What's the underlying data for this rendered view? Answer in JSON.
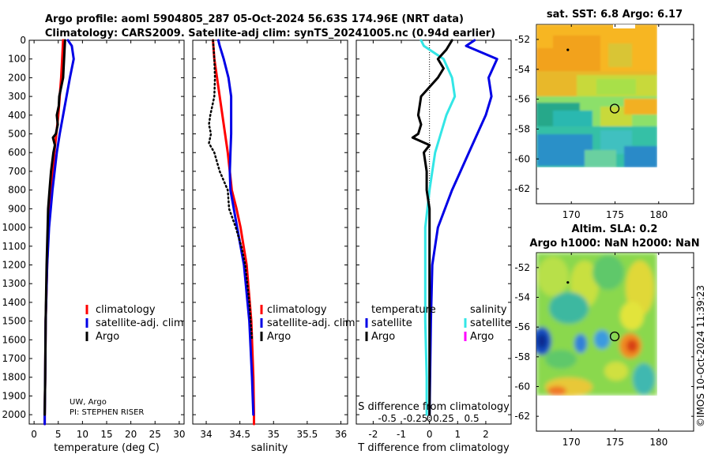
{
  "figure": {
    "title_line1": "Argo profile: aoml 5904805_287 05-Oct-2024 56.63S 174.96E (NRT data)",
    "title_line2": "Climatology: CARS2009. Satellite-adj clim: synTS_20241005.nc (0.94d earlier)",
    "credit": "©IMOS 10-Oct-2024 11:39:23",
    "source_line1": "UW, Argo",
    "source_line2": "PI: STEPHEN RISER"
  },
  "colors": {
    "climatology": "#ff0000",
    "satellite": "#0000e6",
    "argo": "#000000",
    "sal_satellite": "#33e6e6",
    "sal_argo": "#ff00ff",
    "map_marker": "#000000"
  },
  "chart_data": [
    {
      "id": "temperature",
      "type": "line",
      "xlabel": "temperature (deg C)",
      "ylabel": "",
      "xlim": [
        -1,
        31
      ],
      "ylim": [
        2050,
        0
      ],
      "xticks": [
        0,
        5,
        10,
        15,
        20,
        25,
        30
      ],
      "xtick_labels": [
        "0",
        "5",
        "10",
        "15",
        "20",
        "25",
        "30"
      ],
      "yticks": [
        0,
        100,
        200,
        300,
        400,
        500,
        600,
        700,
        800,
        900,
        1000,
        1100,
        1200,
        1300,
        1400,
        1500,
        1600,
        1700,
        1800,
        1900,
        2000
      ],
      "ytick_labels": [
        "0",
        "100",
        "200",
        "300",
        "400",
        "500",
        "600",
        "700",
        "800",
        "900",
        "1000",
        "1100",
        "1200",
        "1300",
        "1400",
        "1500",
        "1600",
        "1700",
        "1800",
        "1900",
        "2000"
      ],
      "legend": [
        "climatology",
        "satellite-adj. clim",
        "Argo"
      ],
      "series": [
        {
          "name": "climatology",
          "style": "solid",
          "depth": [
            0,
            100,
            200,
            300,
            400,
            500,
            600,
            800,
            1000,
            1200,
            1500,
            1800,
            2000,
            2050
          ],
          "values": [
            6.0,
            5.8,
            5.6,
            5.3,
            5.0,
            4.6,
            4.2,
            3.6,
            3.0,
            2.7,
            2.4,
            2.3,
            2.2,
            2.2
          ]
        },
        {
          "name": "satellite-adj. clim",
          "style": "solid",
          "depth": [
            0,
            30,
            100,
            200,
            300,
            400,
            500,
            600,
            800,
            1000,
            1200,
            1500,
            1800,
            2000,
            2050
          ],
          "values": [
            7.0,
            7.8,
            8.2,
            7.4,
            6.7,
            6.0,
            5.3,
            4.7,
            3.8,
            3.1,
            2.7,
            2.4,
            2.3,
            2.2,
            2.2
          ]
        },
        {
          "name": "Argo",
          "style": "solid",
          "depth": [
            0,
            100,
            200,
            300,
            350,
            400,
            450,
            500,
            520,
            560,
            600,
            700,
            800,
            900,
            1000,
            1200,
            1500,
            1800,
            2000
          ],
          "values": [
            6.4,
            6.2,
            6.0,
            5.2,
            5.1,
            4.7,
            4.9,
            4.5,
            3.9,
            4.3,
            4.0,
            3.5,
            3.2,
            2.9,
            2.8,
            2.6,
            2.4,
            2.3,
            2.2
          ]
        }
      ]
    },
    {
      "id": "salinity",
      "type": "line",
      "xlabel": "salinity",
      "xlim": [
        33.8,
        36.1
      ],
      "ylim": [
        2050,
        0
      ],
      "xticks": [
        34,
        34.5,
        35,
        35.5,
        36
      ],
      "xtick_labels": [
        "34",
        "34.5",
        "35",
        "35.5",
        "36"
      ],
      "legend": [
        "climatology",
        "satellite-adj. clim",
        "Argo"
      ],
      "series": [
        {
          "name": "climatology",
          "style": "solid",
          "depth": [
            0,
            100,
            200,
            300,
            400,
            500,
            600,
            700,
            800,
            900,
            1000,
            1200,
            1500,
            1800,
            2000,
            2050
          ],
          "values": [
            34.1,
            34.12,
            34.16,
            34.2,
            34.24,
            34.28,
            34.32,
            34.35,
            34.38,
            34.45,
            34.51,
            34.6,
            34.67,
            34.7,
            34.71,
            34.71
          ]
        },
        {
          "name": "satellite-adj. clim",
          "style": "solid",
          "depth": [
            0,
            30,
            100,
            200,
            300,
            400,
            500,
            600,
            700,
            800,
            1000,
            1200,
            1500,
            1800,
            2000
          ],
          "values": [
            34.18,
            34.2,
            34.26,
            34.33,
            34.37,
            34.37,
            34.37,
            34.36,
            34.35,
            34.36,
            34.46,
            34.56,
            34.64,
            34.68,
            34.7
          ]
        },
        {
          "name": "Argo",
          "style": "dotted",
          "depth": [
            0,
            100,
            200,
            300,
            400,
            450,
            500,
            550,
            600,
            700,
            800,
            900,
            1000,
            1100,
            1200,
            1400,
            1600
          ],
          "values": [
            34.1,
            34.12,
            34.13,
            34.12,
            34.06,
            34.04,
            34.07,
            34.04,
            34.12,
            34.2,
            34.32,
            34.34,
            34.44,
            34.52,
            34.58,
            34.64,
            34.68
          ]
        }
      ]
    },
    {
      "id": "difference",
      "type": "line",
      "xlabel": "T difference from climatology",
      "top_xlabel": "S difference from climatology",
      "xlim": [
        -2.6,
        2.9
      ],
      "ylim": [
        2050,
        0
      ],
      "xticks": [
        -2,
        -1,
        0,
        1,
        2
      ],
      "xtick_labels": [
        "-2",
        "-1",
        "0",
        "1",
        "2"
      ],
      "top_xticks": [
        -1.5,
        -0.5,
        0.5,
        1.5
      ],
      "top_xtick_labels": [
        "-0.5",
        "-0.25",
        "0.25",
        "0.5"
      ],
      "top_xtick_zero_label": "0",
      "legend_headers": [
        "temperature",
        "salinity"
      ],
      "legend_left": [
        "satellite",
        "Argo"
      ],
      "legend_right": [
        "satellite",
        "Argo"
      ],
      "series": [
        {
          "name": "T satellite",
          "depth": [
            0,
            30,
            100,
            200,
            300,
            400,
            500,
            600,
            700,
            800,
            1000,
            1200,
            1500,
            2000
          ],
          "values": [
            1.6,
            1.3,
            2.4,
            2.1,
            2.2,
            2.0,
            1.7,
            1.4,
            1.1,
            0.8,
            0.3,
            0.1,
            0.05,
            0.0
          ]
        },
        {
          "name": "S satellite",
          "depth": [
            0,
            30,
            100,
            200,
            300,
            400,
            500,
            600,
            700,
            800,
            1000,
            1200,
            1500,
            1800,
            2000
          ],
          "values": [
            -0.3,
            -0.2,
            0.5,
            0.8,
            0.9,
            0.6,
            0.4,
            0.2,
            0.1,
            0.0,
            -0.15,
            -0.15,
            -0.15,
            -0.1,
            -0.1
          ]
        },
        {
          "name": "T Argo",
          "depth": [
            0,
            50,
            100,
            150,
            200,
            300,
            400,
            450,
            500,
            520,
            560,
            600,
            700,
            800,
            900,
            1000,
            1200,
            1500,
            2000
          ],
          "values": [
            0.8,
            0.6,
            0.3,
            0.5,
            0.3,
            -0.3,
            -0.4,
            -0.3,
            -0.4,
            -0.6,
            0.0,
            -0.2,
            -0.1,
            -0.1,
            0.0,
            0.0,
            0.0,
            0.0,
            0.0
          ]
        }
      ],
      "zero_line": true
    }
  ],
  "maps": [
    {
      "id": "sst-map",
      "title": "sat. SST: 6.8 Argo: 6.17",
      "lat_ticks": [
        -52,
        -54,
        -56,
        -58,
        -60,
        -62
      ],
      "lat_tick_labels": [
        "-52",
        "-54",
        "-56",
        "-58",
        "-60",
        "-62"
      ],
      "lon_ticks": [
        170,
        175,
        180
      ],
      "lon_tick_labels": [
        "170",
        "175",
        "180"
      ],
      "lon_range": [
        166,
        184
      ],
      "lat_range": [
        -51,
        -63
      ],
      "data_extent": {
        "lon": [
          166,
          180
        ],
        "lat": [
          -51,
          -60
        ]
      },
      "marker": {
        "lon": 174.96,
        "lat": -56.63
      },
      "other_profiles": [
        {
          "lon": 169.6,
          "lat": -52.7
        }
      ]
    },
    {
      "id": "sla-map",
      "title_line1": "Altim. SLA: 0.2",
      "title_line2": "Argo h1000: NaN h2000: NaN",
      "lat_ticks": [
        -52,
        -54,
        -56,
        -58,
        -60,
        -62
      ],
      "lat_tick_labels": [
        "-52",
        "-54",
        "-56",
        "-58",
        "-60",
        "-62"
      ],
      "lon_ticks": [
        170,
        175,
        180
      ],
      "lon_tick_labels": [
        "170",
        "175",
        "180"
      ],
      "lon_range": [
        166,
        184
      ],
      "lat_range": [
        -51,
        -63
      ],
      "data_extent": {
        "lon": [
          166,
          180
        ],
        "lat": [
          -51,
          -60
        ]
      },
      "marker": {
        "lon": 174.96,
        "lat": -56.63
      },
      "other_profiles": [
        {
          "lon": 169.6,
          "lat": -53.0
        }
      ]
    }
  ]
}
